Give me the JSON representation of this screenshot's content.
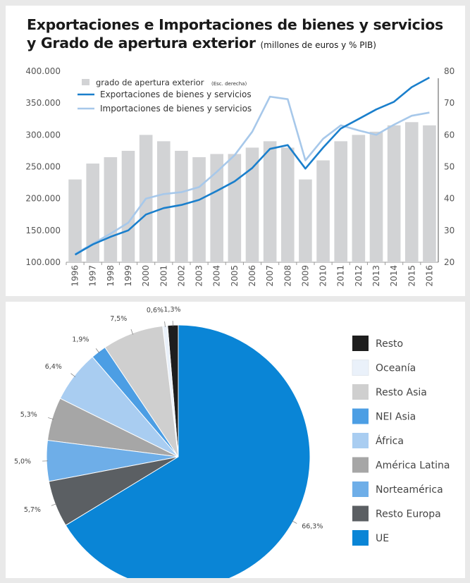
{
  "title": {
    "line1": "Exportaciones e Importaciones de bienes y servicios",
    "line2": "y Grado de apertura exterior",
    "unit": "(millones de euros y % PIB)"
  },
  "colors": {
    "bar": "#d2d3d5",
    "exports": "#1a7fcc",
    "imports": "#a7c8ea",
    "axis_text": "#555555"
  },
  "chart_data": [
    {
      "type": "bar",
      "title": "Exportaciones e Importaciones de bienes y servicios y Grado de apertura exterior",
      "categories": [
        "1996",
        "1997",
        "1998",
        "1999",
        "2000",
        "2001",
        "2002",
        "2003",
        "2004",
        "2005",
        "2006",
        "2007",
        "2008",
        "2009",
        "2010",
        "2011",
        "2012",
        "2013",
        "2014",
        "2015",
        "2016"
      ],
      "y_left_ticks": [
        "400.000",
        "350.000",
        "300.000",
        "250.000",
        "200.000",
        "150.000",
        "100.000"
      ],
      "y_left_range": [
        100000,
        400000
      ],
      "y_right_ticks": [
        "80",
        "70",
        "60",
        "50",
        "40",
        "30",
        "20"
      ],
      "y_right_range": [
        20,
        80
      ],
      "legend_placement": "top-left",
      "series": [
        {
          "name": "grado de apertura exterior",
          "note": "(Esc. derecha)",
          "kind": "bar",
          "axis": "right",
          "values": [
            46,
            51,
            53,
            55,
            60,
            58,
            55,
            53,
            54,
            54,
            56,
            58,
            56,
            46,
            52,
            58,
            60,
            61,
            63,
            64,
            63
          ]
        },
        {
          "name": "Exportaciones de bienes y servicios",
          "kind": "line",
          "axis": "left",
          "values": [
            112000,
            128000,
            140000,
            150000,
            175000,
            185000,
            190000,
            198000,
            212000,
            227000,
            248000,
            278000,
            284000,
            247000,
            280000,
            310000,
            325000,
            340000,
            352000,
            375000,
            390000
          ]
        },
        {
          "name": "Importaciones de bienes y servicios",
          "kind": "line",
          "axis": "left",
          "values": [
            113000,
            129000,
            145000,
            162000,
            200000,
            207000,
            210000,
            218000,
            242000,
            268000,
            305000,
            360000,
            356000,
            260000,
            294000,
            315000,
            307000,
            300000,
            316000,
            330000,
            335000
          ]
        }
      ]
    },
    {
      "type": "pie",
      "slices": [
        {
          "label": "Resto",
          "value": 1.3,
          "text": "1,3%",
          "color": "#1e1e1e"
        },
        {
          "label": "Oceanía",
          "value": 0.6,
          "text": "0,6%",
          "color": "#eaf1fa"
        },
        {
          "label": "Resto Asia",
          "value": 7.5,
          "text": "7,5%",
          "color": "#cfcfcf"
        },
        {
          "label": "NEI Asia",
          "value": 1.9,
          "text": "1,9%",
          "color": "#4c9ee4"
        },
        {
          "label": "África",
          "value": 6.4,
          "text": "6,4%",
          "color": "#a9cdf1"
        },
        {
          "label": "América Latina",
          "value": 5.3,
          "text": "5,3%",
          "color": "#a6a6a6"
        },
        {
          "label": "Norteamérica",
          "value": 5.0,
          "text": "5,0%",
          "color": "#6eaee8"
        },
        {
          "label": "Resto Europa",
          "value": 5.7,
          "text": "5,7%",
          "color": "#5b5f63"
        },
        {
          "label": "UE",
          "value": 66.3,
          "text": "66,3%",
          "color": "#0a85d6"
        }
      ],
      "legend_placement": "right"
    }
  ]
}
